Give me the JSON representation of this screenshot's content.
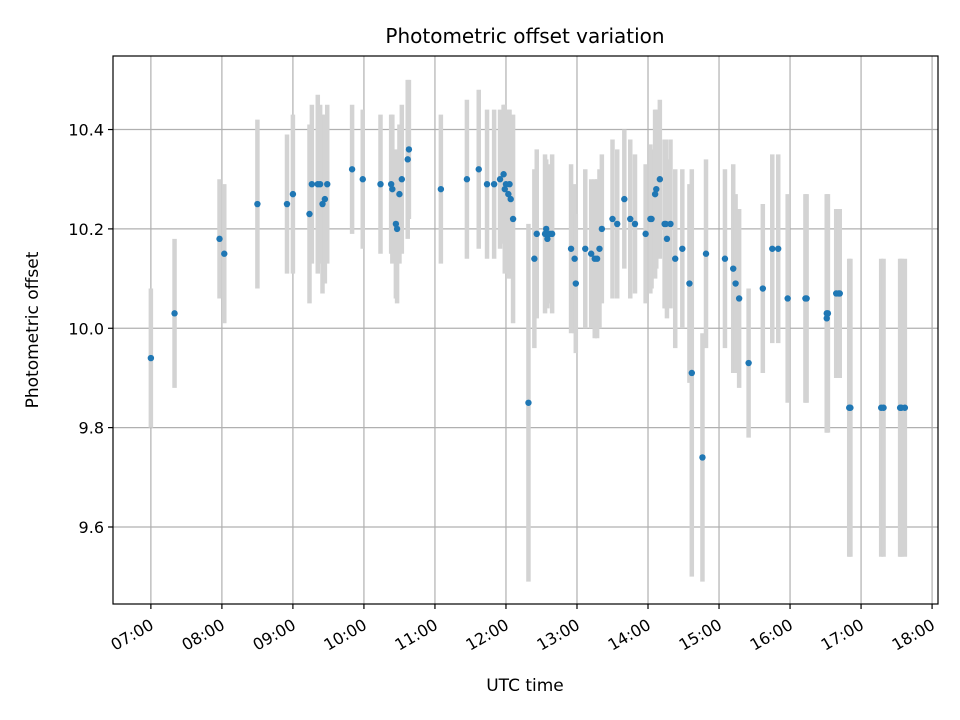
{
  "chart_data": {
    "type": "scatter",
    "title": "Photometric offset variation",
    "xlabel": "UTC time",
    "ylabel": "Photometric offset",
    "x_ticks": [
      "07:00",
      "08:00",
      "09:00",
      "10:00",
      "11:00",
      "12:00",
      "13:00",
      "14:00",
      "15:00",
      "16:00",
      "17:00",
      "18:00"
    ],
    "y_ticks": [
      "9.6",
      "9.8",
      "10.0",
      "10.2",
      "10.4"
    ],
    "xlim": [
      "06:28",
      "18:05"
    ],
    "ylim": [
      9.445,
      10.548
    ],
    "grid": true,
    "colors": {
      "point": "#1f77b4",
      "errorbar": "#d3d3d3",
      "grid": "#b0b0b0"
    },
    "series": [
      {
        "x": [
          "07:00",
          "07:20",
          "07:58",
          "08:02",
          "08:30",
          "08:55",
          "09:00",
          "09:14",
          "09:16",
          "09:21",
          "09:23",
          "09:25",
          "09:27",
          "09:29",
          "09:50",
          "09:59",
          "10:14",
          "10:23",
          "10:24",
          "10:27",
          "10:28",
          "10:30",
          "10:32",
          "10:37",
          "10:38",
          "11:05",
          "11:27",
          "11:37",
          "11:44",
          "11:50",
          "11:55",
          "11:58",
          "11:59",
          "12:00",
          "12:02",
          "12:03",
          "12:04",
          "12:06",
          "12:19",
          "12:24",
          "12:26",
          "12:33",
          "12:34",
          "12:35",
          "12:37",
          "12:39",
          "12:55",
          "12:58",
          "12:59",
          "13:07",
          "13:12",
          "13:15",
          "13:17",
          "13:19",
          "13:21",
          "13:30",
          "13:34",
          "13:40",
          "13:45",
          "13:49",
          "13:58",
          "14:02",
          "14:03",
          "14:06",
          "14:07",
          "14:10",
          "14:14",
          "14:15",
          "14:16",
          "14:19",
          "14:23",
          "14:29",
          "14:35",
          "14:37",
          "14:46",
          "14:49",
          "15:05",
          "15:12",
          "15:14",
          "15:17",
          "15:25",
          "15:37",
          "15:45",
          "15:50",
          "15:58",
          "16:13",
          "16:14",
          "16:31",
          "16:31",
          "16:32",
          "16:39",
          "16:41",
          "16:42",
          "16:50",
          "16:51",
          "17:17",
          "17:19",
          "17:33",
          "17:34",
          "17:37"
        ],
        "y": [
          9.94,
          10.03,
          10.18,
          10.15,
          10.25,
          10.25,
          10.27,
          10.23,
          10.29,
          10.29,
          10.29,
          10.25,
          10.26,
          10.29,
          10.32,
          10.3,
          10.29,
          10.29,
          10.28,
          10.21,
          10.2,
          10.27,
          10.3,
          10.34,
          10.36,
          10.28,
          10.3,
          10.32,
          10.29,
          10.29,
          10.3,
          10.31,
          10.28,
          10.29,
          10.27,
          10.29,
          10.26,
          10.22,
          9.85,
          10.14,
          10.19,
          10.19,
          10.2,
          10.18,
          10.19,
          10.19,
          10.16,
          10.14,
          10.09,
          10.16,
          10.15,
          10.14,
          10.14,
          10.16,
          10.2,
          10.22,
          10.21,
          10.26,
          10.22,
          10.21,
          10.19,
          10.22,
          10.22,
          10.27,
          10.28,
          10.3,
          10.21,
          10.21,
          10.18,
          10.21,
          10.14,
          10.16,
          10.09,
          9.91,
          9.74,
          10.15,
          10.14,
          10.12,
          10.09,
          10.06,
          9.93,
          10.08,
          10.16,
          10.16,
          10.06,
          10.06,
          10.06,
          10.02,
          10.03,
          10.03,
          10.07,
          10.07,
          10.07,
          9.84,
          9.84,
          9.84,
          9.84,
          9.84,
          9.84,
          9.84
        ],
        "yerr_low": [
          0.14,
          0.15,
          0.12,
          0.14,
          0.17,
          0.14,
          0.16,
          0.18,
          0.16,
          0.18,
          0.16,
          0.18,
          0.17,
          0.16,
          0.13,
          0.14,
          0.14,
          0.14,
          0.15,
          0.15,
          0.15,
          0.14,
          0.15,
          0.16,
          0.14,
          0.15,
          0.16,
          0.16,
          0.15,
          0.15,
          0.14,
          0.14,
          0.17,
          0.15,
          0.17,
          0.15,
          0.16,
          0.21,
          0.36,
          0.18,
          0.17,
          0.16,
          0.14,
          0.14,
          0.14,
          0.16,
          0.17,
          0.15,
          0.14,
          0.16,
          0.15,
          0.16,
          0.16,
          0.16,
          0.15,
          0.16,
          0.15,
          0.14,
          0.16,
          0.14,
          0.14,
          0.15,
          0.14,
          0.17,
          0.16,
          0.16,
          0.17,
          0.17,
          0.16,
          0.17,
          0.18,
          0.16,
          0.2,
          0.41,
          0.25,
          0.19,
          0.18,
          0.21,
          0.18,
          0.18,
          0.15,
          0.17,
          0.19,
          0.19,
          0.21,
          0.21,
          0.21,
          0.23,
          0.24,
          0.24,
          0.17,
          0.17,
          0.17,
          0.3,
          0.3,
          0.3,
          0.3,
          0.3,
          0.3,
          0.3
        ],
        "yerr_high": [
          0.14,
          0.15,
          0.12,
          0.14,
          0.17,
          0.14,
          0.16,
          0.18,
          0.16,
          0.18,
          0.16,
          0.18,
          0.17,
          0.16,
          0.13,
          0.14,
          0.14,
          0.14,
          0.15,
          0.15,
          0.15,
          0.14,
          0.15,
          0.16,
          0.14,
          0.15,
          0.16,
          0.16,
          0.15,
          0.15,
          0.14,
          0.14,
          0.17,
          0.15,
          0.17,
          0.15,
          0.16,
          0.21,
          0.36,
          0.18,
          0.17,
          0.16,
          0.14,
          0.14,
          0.14,
          0.16,
          0.17,
          0.15,
          0.14,
          0.16,
          0.15,
          0.16,
          0.16,
          0.16,
          0.15,
          0.16,
          0.15,
          0.14,
          0.16,
          0.14,
          0.14,
          0.15,
          0.14,
          0.17,
          0.16,
          0.16,
          0.17,
          0.17,
          0.16,
          0.17,
          0.18,
          0.16,
          0.2,
          0.41,
          0.25,
          0.19,
          0.18,
          0.21,
          0.18,
          0.18,
          0.15,
          0.17,
          0.19,
          0.19,
          0.21,
          0.21,
          0.21,
          0.23,
          0.24,
          0.24,
          0.17,
          0.17,
          0.17,
          0.3,
          0.3,
          0.3,
          0.3,
          0.3,
          0.3,
          0.3
        ]
      }
    ]
  }
}
